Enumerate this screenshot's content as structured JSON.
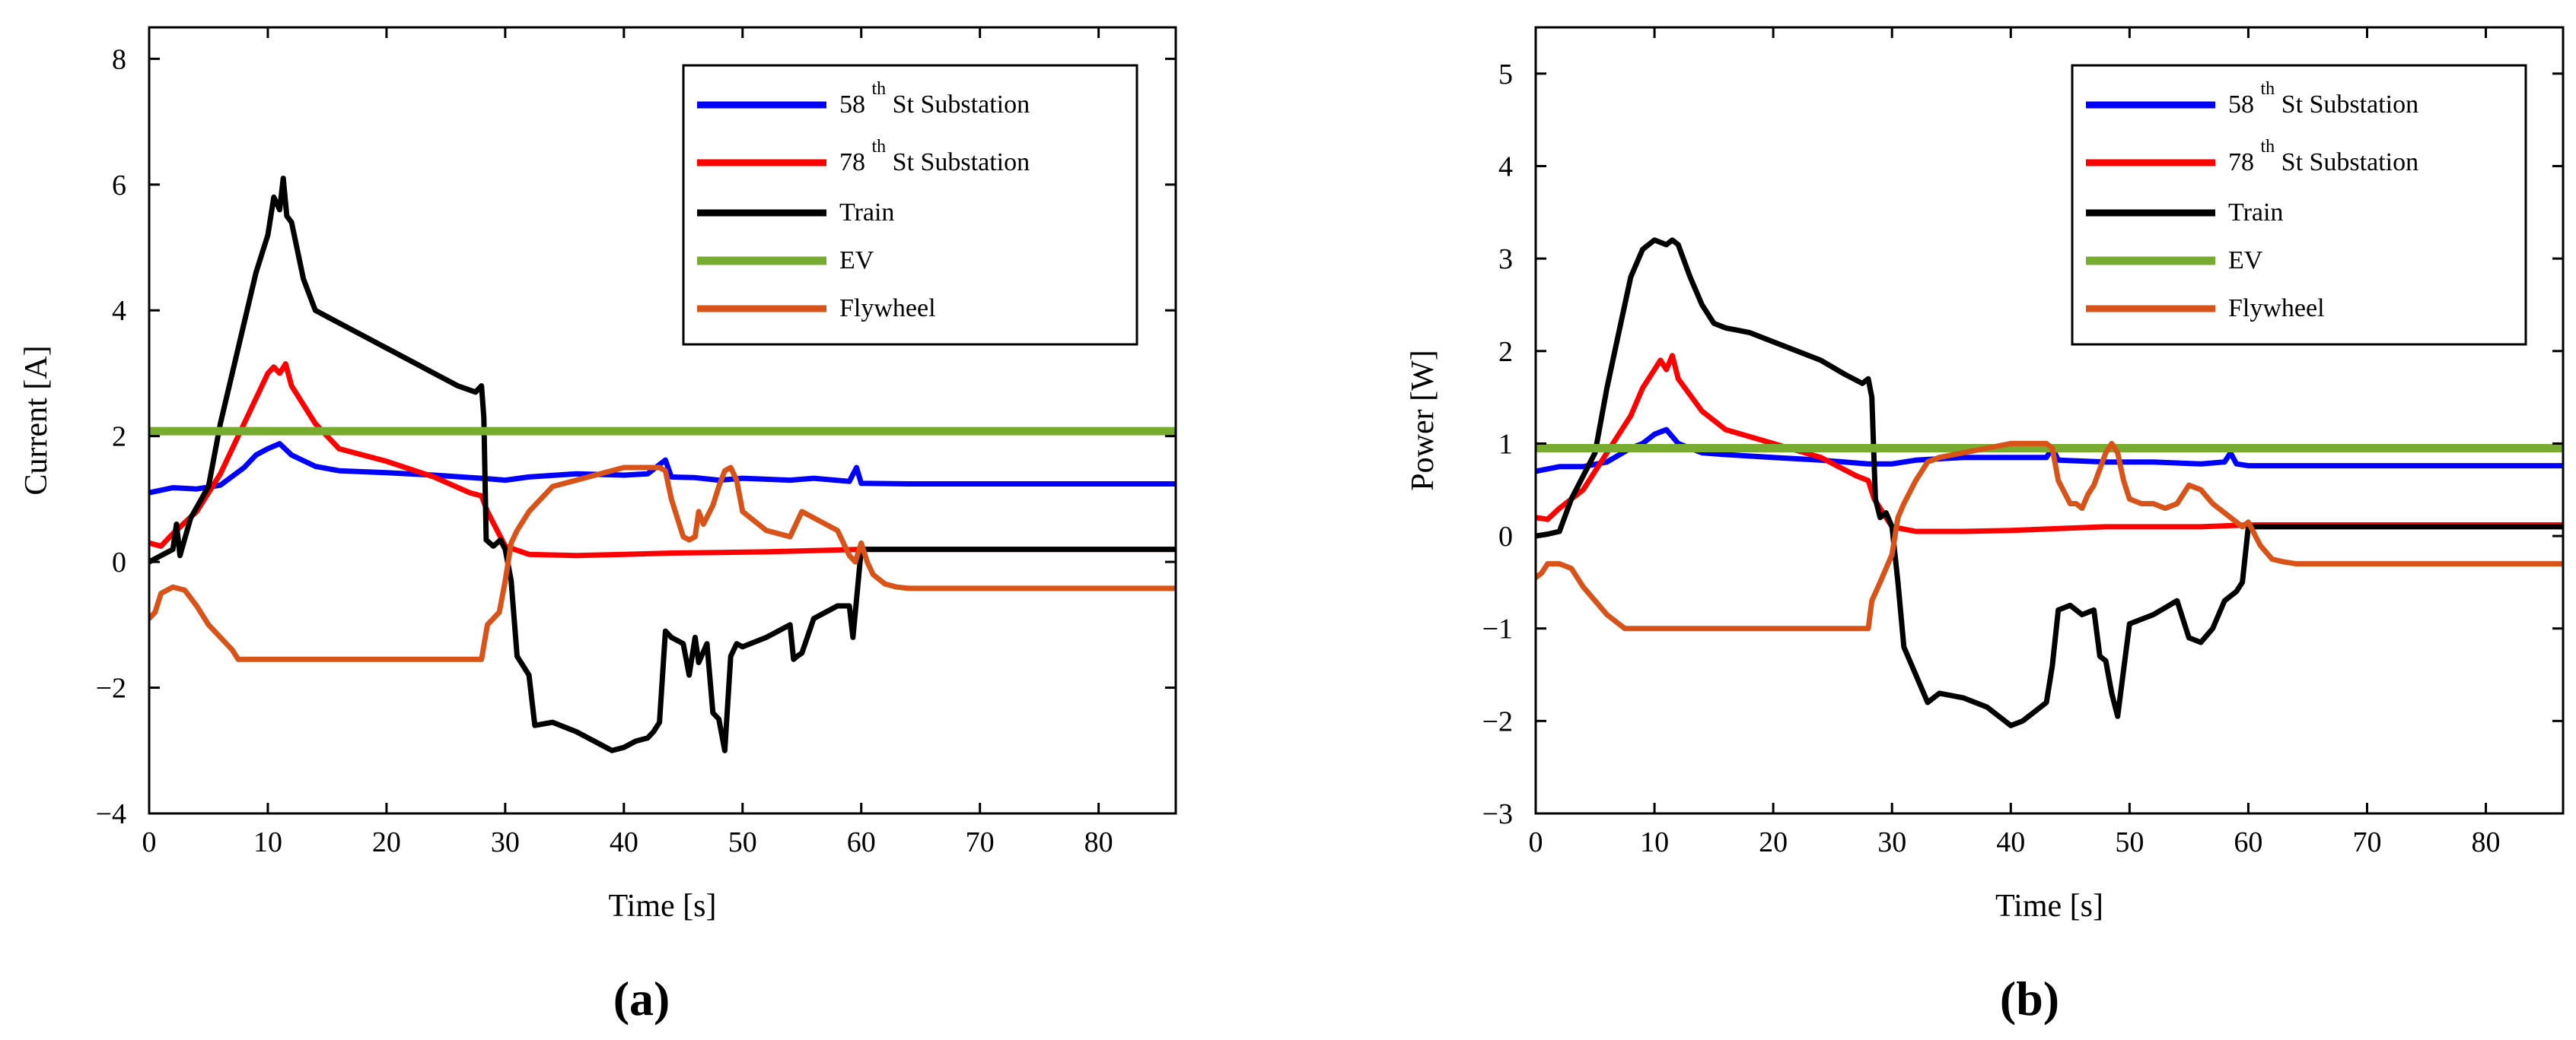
{
  "figure": {
    "panel_labels": [
      "(a)",
      "(b)"
    ]
  },
  "chart_data": [
    {
      "type": "line",
      "panel": "(a)",
      "xlabel": "Time [s]",
      "ylabel": "Current [A]",
      "xlim": [
        0,
        86.5
      ],
      "ylim": [
        -4,
        8.5
      ],
      "xticks": [
        0,
        10,
        20,
        30,
        40,
        50,
        60,
        70,
        80
      ],
      "yticks": [
        -4,
        -2,
        0,
        2,
        4,
        6,
        8
      ],
      "ytick_labels": [
        "−4",
        "−2",
        "0",
        "2",
        "4",
        "6",
        "8"
      ],
      "legend_position": "top-right",
      "series": [
        {
          "name": "58th St Substation",
          "legend_pre": "58 ",
          "legend_sup": "th",
          "legend_post": " St Substation",
          "color": "#0000ff",
          "x": [
            0,
            2,
            4,
            6,
            8,
            9,
            10,
            11,
            12,
            14,
            16,
            20,
            24,
            28,
            30,
            32,
            36,
            40,
            42,
            43.5,
            44,
            46,
            48,
            50,
            54,
            56,
            59,
            59.6,
            60,
            64,
            86.5
          ],
          "y": [
            1.1,
            1.18,
            1.16,
            1.22,
            1.5,
            1.7,
            1.8,
            1.88,
            1.7,
            1.52,
            1.45,
            1.42,
            1.38,
            1.33,
            1.3,
            1.35,
            1.4,
            1.38,
            1.4,
            1.62,
            1.35,
            1.34,
            1.3,
            1.33,
            1.3,
            1.33,
            1.28,
            1.5,
            1.25,
            1.24,
            1.24
          ]
        },
        {
          "name": "78th St Substation",
          "legend_pre": "78 ",
          "legend_sup": "th",
          "legend_post": " St Substation",
          "color": "#ff0000",
          "x": [
            0,
            1,
            2,
            4,
            6,
            8,
            9,
            10,
            10.5,
            11,
            11.5,
            12,
            14,
            16,
            20,
            24,
            27,
            28,
            28.5,
            30,
            32,
            36,
            40,
            44,
            48,
            52,
            56,
            60,
            86.5
          ],
          "y": [
            0.3,
            0.25,
            0.45,
            0.8,
            1.4,
            2.2,
            2.6,
            3.0,
            3.1,
            3.0,
            3.15,
            2.8,
            2.2,
            1.8,
            1.6,
            1.35,
            1.1,
            1.05,
            0.8,
            0.25,
            0.12,
            0.1,
            0.12,
            0.14,
            0.15,
            0.16,
            0.18,
            0.2,
            0.2
          ]
        },
        {
          "name": "Train",
          "legend_pre": "Train",
          "legend_sup": "",
          "legend_post": "",
          "color": "#000000",
          "x": [
            0,
            1,
            2,
            2.3,
            2.6,
            3.5,
            5,
            6,
            7,
            8,
            9,
            10,
            10.5,
            11,
            11.3,
            11.6,
            12,
            13,
            14,
            15,
            16,
            18,
            20,
            22,
            24,
            26,
            27.5,
            28,
            28.2,
            28.4,
            29,
            29.6,
            30,
            30.5,
            31,
            32,
            32.5,
            34,
            36,
            38,
            39,
            40,
            41,
            42,
            42.5,
            43,
            43.5,
            44,
            45,
            45.5,
            46,
            46.3,
            47,
            47.5,
            48,
            48.5,
            49,
            49.5,
            50,
            52,
            54,
            54.3,
            54.6,
            55,
            56,
            58,
            59,
            59.3,
            59.6,
            60,
            86.5
          ],
          "y": [
            0,
            0.1,
            0.2,
            0.6,
            0.1,
            0.7,
            1.2,
            2.2,
            3.0,
            3.8,
            4.6,
            5.2,
            5.8,
            5.6,
            6.1,
            5.5,
            5.4,
            4.5,
            4.0,
            3.9,
            3.8,
            3.6,
            3.4,
            3.2,
            3.0,
            2.8,
            2.7,
            2.8,
            2.3,
            0.35,
            0.25,
            0.35,
            0.2,
            -0.3,
            -1.5,
            -1.8,
            -2.6,
            -2.55,
            -2.7,
            -2.9,
            -3.0,
            -2.95,
            -2.85,
            -2.8,
            -2.7,
            -2.55,
            -1.1,
            -1.2,
            -1.3,
            -1.8,
            -1.2,
            -1.6,
            -1.3,
            -2.4,
            -2.5,
            -3.0,
            -1.5,
            -1.3,
            -1.35,
            -1.2,
            -1.0,
            -1.55,
            -1.5,
            -1.45,
            -0.9,
            -0.7,
            -0.7,
            -1.2,
            -0.6,
            0.2,
            0.2
          ]
        },
        {
          "name": "EV",
          "legend_pre": "EV",
          "legend_sup": "",
          "legend_post": "",
          "color": "#77ac30",
          "x": [
            0,
            86.5
          ],
          "y": [
            2.08,
            2.08
          ]
        },
        {
          "name": "Flywheel",
          "legend_pre": "Flywheel",
          "legend_sup": "",
          "legend_post": "",
          "color": "#d95319",
          "x": [
            0,
            0.5,
            1,
            2,
            3,
            4,
            5,
            6,
            7,
            7.5,
            10,
            20,
            27,
            28,
            28.5,
            29.5,
            30,
            30.5,
            31,
            32,
            33,
            34,
            36,
            38,
            40,
            42,
            43,
            43.5,
            44,
            45,
            45.5,
            46,
            46.3,
            46.7,
            47.5,
            48,
            48.5,
            49,
            49.5,
            50,
            52,
            54,
            55,
            56,
            58,
            59,
            59.5,
            60,
            60.5,
            61,
            62,
            63,
            64,
            86.5
          ],
          "y": [
            -0.9,
            -0.8,
            -0.5,
            -0.4,
            -0.45,
            -0.7,
            -1.0,
            -1.2,
            -1.4,
            -1.55,
            -1.55,
            -1.55,
            -1.55,
            -1.55,
            -1.0,
            -0.8,
            -0.3,
            0.3,
            0.5,
            0.8,
            1.0,
            1.2,
            1.3,
            1.4,
            1.5,
            1.5,
            1.5,
            1.45,
            1.0,
            0.4,
            0.35,
            0.4,
            0.8,
            0.6,
            0.9,
            1.2,
            1.45,
            1.5,
            1.3,
            0.8,
            0.5,
            0.4,
            0.8,
            0.7,
            0.5,
            0.1,
            0.0,
            0.3,
            0.0,
            -0.2,
            -0.35,
            -0.4,
            -0.42,
            -0.42
          ]
        }
      ]
    },
    {
      "type": "line",
      "panel": "(b)",
      "xlabel": "Time [s]",
      "ylabel": "Power [W]",
      "xlim": [
        0,
        86.5
      ],
      "ylim": [
        -3,
        5.5
      ],
      "xticks": [
        0,
        10,
        20,
        30,
        40,
        50,
        60,
        70,
        80
      ],
      "yticks": [
        -3,
        -2,
        -1,
        0,
        1,
        2,
        3,
        4,
        5
      ],
      "ytick_labels": [
        "−3",
        "−2",
        "−1",
        "0",
        "1",
        "2",
        "3",
        "4",
        "5"
      ],
      "legend_position": "top-right",
      "series": [
        {
          "name": "58th St Substation",
          "legend_pre": "58 ",
          "legend_sup": "th",
          "legend_post": " St Substation",
          "color": "#0000ff",
          "x": [
            0,
            2,
            4,
            6,
            8,
            9,
            10,
            11,
            12,
            14,
            16,
            20,
            24,
            28,
            30,
            32,
            36,
            40,
            43,
            43.5,
            44,
            48,
            52,
            56,
            58,
            58.5,
            59,
            60,
            86.5
          ],
          "y": [
            0.7,
            0.75,
            0.75,
            0.8,
            0.95,
            1.0,
            1.1,
            1.15,
            1.0,
            0.9,
            0.88,
            0.85,
            0.82,
            0.78,
            0.78,
            0.82,
            0.85,
            0.85,
            0.85,
            0.95,
            0.82,
            0.8,
            0.8,
            0.78,
            0.8,
            0.9,
            0.78,
            0.76,
            0.76
          ]
        },
        {
          "name": "78th St Substation",
          "legend_pre": "78 ",
          "legend_sup": "th",
          "legend_post": " St Substation",
          "color": "#ff0000",
          "x": [
            0,
            1,
            2,
            4,
            6,
            8,
            9,
            10,
            10.5,
            11,
            11.5,
            12,
            14,
            16,
            20,
            24,
            27,
            28,
            28.5,
            30,
            32,
            36,
            40,
            44,
            48,
            52,
            56,
            60,
            86.5
          ],
          "y": [
            0.2,
            0.18,
            0.3,
            0.5,
            0.9,
            1.3,
            1.6,
            1.8,
            1.9,
            1.8,
            1.95,
            1.7,
            1.35,
            1.15,
            1.0,
            0.85,
            0.65,
            0.6,
            0.4,
            0.1,
            0.05,
            0.05,
            0.06,
            0.08,
            0.1,
            0.1,
            0.1,
            0.12,
            0.12
          ]
        },
        {
          "name": "Train",
          "legend_pre": "Train",
          "legend_sup": "",
          "legend_post": "",
          "color": "#000000",
          "x": [
            0,
            1,
            2,
            3,
            5,
            6,
            7,
            8,
            9,
            10,
            11,
            11.5,
            12,
            13,
            14,
            15,
            16,
            18,
            20,
            22,
            24,
            26,
            27.5,
            28,
            28.3,
            28.6,
            29,
            29.5,
            30,
            30.5,
            31,
            32,
            33,
            34,
            36,
            38,
            39,
            40,
            41,
            42,
            43,
            43.5,
            44,
            45,
            46,
            47,
            47.5,
            48,
            48.5,
            49,
            50,
            52,
            54,
            55,
            56,
            57,
            58,
            59,
            59.5,
            60,
            86.5
          ],
          "y": [
            0,
            0.02,
            0.05,
            0.4,
            0.9,
            1.6,
            2.2,
            2.8,
            3.1,
            3.2,
            3.15,
            3.2,
            3.15,
            2.8,
            2.5,
            2.3,
            2.25,
            2.2,
            2.1,
            2.0,
            1.9,
            1.75,
            1.65,
            1.7,
            1.5,
            0.4,
            0.2,
            0.25,
            0.1,
            -0.5,
            -1.2,
            -1.5,
            -1.8,
            -1.7,
            -1.75,
            -1.85,
            -1.95,
            -2.05,
            -2.0,
            -1.9,
            -1.8,
            -1.4,
            -0.8,
            -0.75,
            -0.85,
            -0.8,
            -1.3,
            -1.35,
            -1.7,
            -1.95,
            -0.95,
            -0.85,
            -0.7,
            -1.1,
            -1.15,
            -1.0,
            -0.7,
            -0.6,
            -0.5,
            0.1,
            0.1
          ]
        },
        {
          "name": "EV",
          "legend_pre": "EV",
          "legend_sup": "",
          "legend_post": "",
          "color": "#77ac30",
          "x": [
            0,
            86.5
          ],
          "y": [
            0.95,
            0.95
          ]
        },
        {
          "name": "Flywheel",
          "legend_pre": "Flywheel",
          "legend_sup": "",
          "legend_post": "",
          "color": "#d95319",
          "x": [
            0,
            0.5,
            1,
            2,
            3,
            4,
            5,
            6,
            7,
            7.5,
            10,
            20,
            27,
            28,
            28.3,
            29,
            30,
            30.5,
            31,
            32,
            33,
            34,
            36,
            38,
            40,
            42,
            43,
            43.5,
            44,
            45,
            45.5,
            46,
            46.5,
            47,
            48,
            48.5,
            49,
            49.5,
            50,
            51,
            52,
            53,
            54,
            55,
            56,
            57,
            58,
            59,
            59.5,
            60,
            61,
            62,
            63,
            64,
            86.5
          ],
          "y": [
            -0.45,
            -0.4,
            -0.3,
            -0.3,
            -0.35,
            -0.55,
            -0.7,
            -0.85,
            -0.95,
            -1.0,
            -1.0,
            -1.0,
            -1.0,
            -1.0,
            -0.7,
            -0.5,
            -0.2,
            0.2,
            0.35,
            0.6,
            0.8,
            0.85,
            0.9,
            0.95,
            1.0,
            1.0,
            1.0,
            0.95,
            0.6,
            0.35,
            0.35,
            0.3,
            0.45,
            0.55,
            0.9,
            1.0,
            0.9,
            0.6,
            0.4,
            0.35,
            0.35,
            0.3,
            0.35,
            0.55,
            0.5,
            0.35,
            0.25,
            0.15,
            0.1,
            0.15,
            -0.1,
            -0.25,
            -0.28,
            -0.3,
            -0.3
          ]
        }
      ]
    }
  ]
}
